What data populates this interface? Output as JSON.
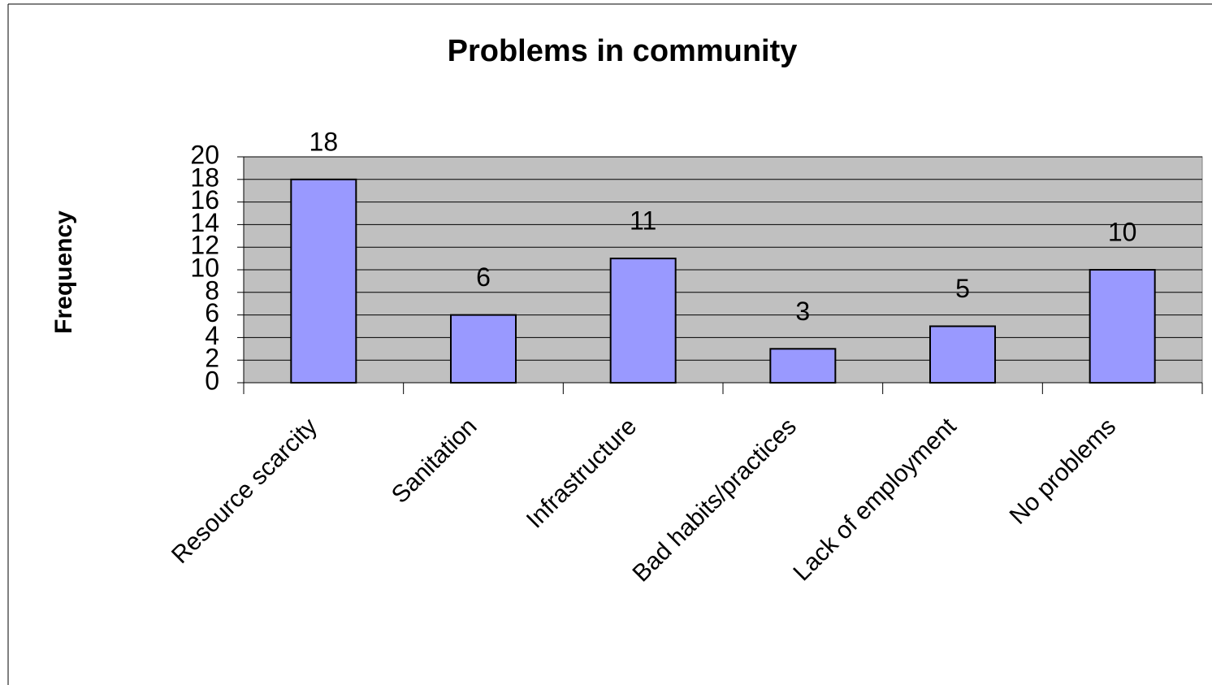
{
  "chart_data": {
    "type": "bar",
    "title": "Problems in community",
    "y_label": "Frequency",
    "categories": [
      "Resource scarcity",
      "Sanitation",
      "Infrastructure",
      "Bad habits/practices",
      "Lack of employment",
      "No problems"
    ],
    "values": [
      18,
      6,
      11,
      3,
      5,
      10
    ],
    "color": "#9999ff",
    "ylim": [
      0,
      20
    ],
    "yticks": [
      0,
      2,
      4,
      6,
      8,
      10,
      12,
      14,
      16,
      18,
      20
    ],
    "grid": true,
    "plot_background": "#c0c0c0"
  }
}
